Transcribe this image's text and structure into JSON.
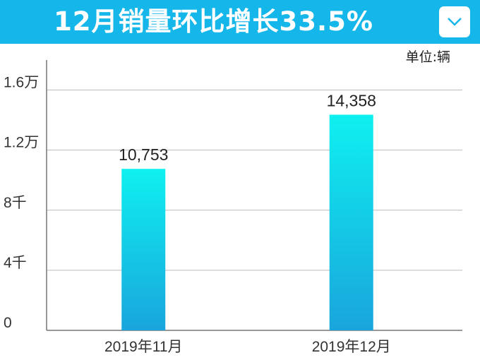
{
  "header": {
    "title": "12月销量环比增长33.5%",
    "background": "#15b7ea",
    "dropdown_icon": "chevron-down-icon"
  },
  "chart_data": {
    "type": "bar",
    "title": "12月销量环比增长33.5%",
    "unit_label": "单位:辆",
    "categories": [
      "2019年11月",
      "2019年12月"
    ],
    "values": [
      10753,
      14358
    ],
    "data_labels": [
      "10,753",
      "14,358"
    ],
    "ylim": [
      0,
      18000
    ],
    "yticks": [
      {
        "value": 0,
        "label": "0"
      },
      {
        "value": 4000,
        "label": "4千"
      },
      {
        "value": 8000,
        "label": "8千"
      },
      {
        "value": 12000,
        "label": "1.2万"
      },
      {
        "value": 16000,
        "label": "1.6万"
      }
    ],
    "grid": true,
    "colors": {
      "bar_top": "#0ff0f0",
      "bar_bottom": "#19a5dc",
      "grid": "#bbbbbb",
      "axis": "#777777"
    }
  }
}
